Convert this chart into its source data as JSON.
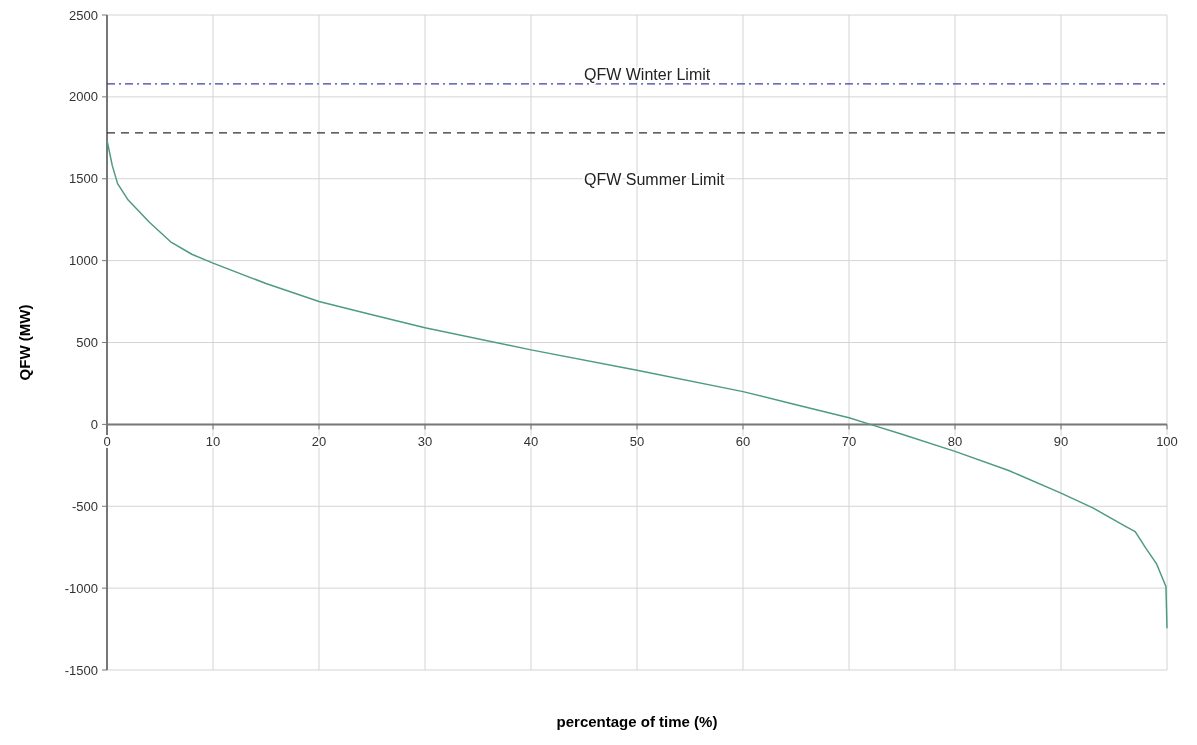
{
  "chart_data": {
    "type": "line",
    "xlabel": "percentage of time (%)",
    "ylabel": "QFW (MW)",
    "xlim": [
      0,
      100
    ],
    "xticks": [
      0,
      10,
      20,
      30,
      40,
      50,
      60,
      70,
      80,
      90,
      100
    ],
    "ylim": [
      -1500,
      2500
    ],
    "yticks": [
      -1500,
      -1000,
      -500,
      0,
      500,
      1000,
      1500,
      2000,
      2500
    ],
    "grid": true,
    "series": [
      {
        "color": "#4f9a84",
        "x": [
          0,
          0.5,
          1,
          2,
          4,
          6,
          8,
          10,
          15,
          20,
          25,
          30,
          40,
          50,
          60,
          65,
          70,
          72,
          75,
          80,
          85,
          90,
          93,
          96,
          97,
          98,
          99,
          99.9,
          100
        ],
        "values": [
          1735,
          1580,
          1470,
          1370,
          1234,
          1115,
          1039,
          985,
          860,
          750,
          670,
          590,
          455,
          330,
          200,
          120,
          40,
          0,
          -60,
          -165,
          -280,
          -420,
          -510,
          -620,
          -655,
          -756,
          -850,
          -990,
          -1245
        ]
      }
    ],
    "ref_lines": [
      {
        "axis": "y",
        "value": 2080,
        "label": "QFW Winter Limit",
        "color": "#4040a0",
        "line_style": "dashdot"
      },
      {
        "axis": "y",
        "value": 1780,
        "label": "QFW Summer Limit",
        "color": "#303030",
        "line_style": "dashed"
      }
    ]
  }
}
